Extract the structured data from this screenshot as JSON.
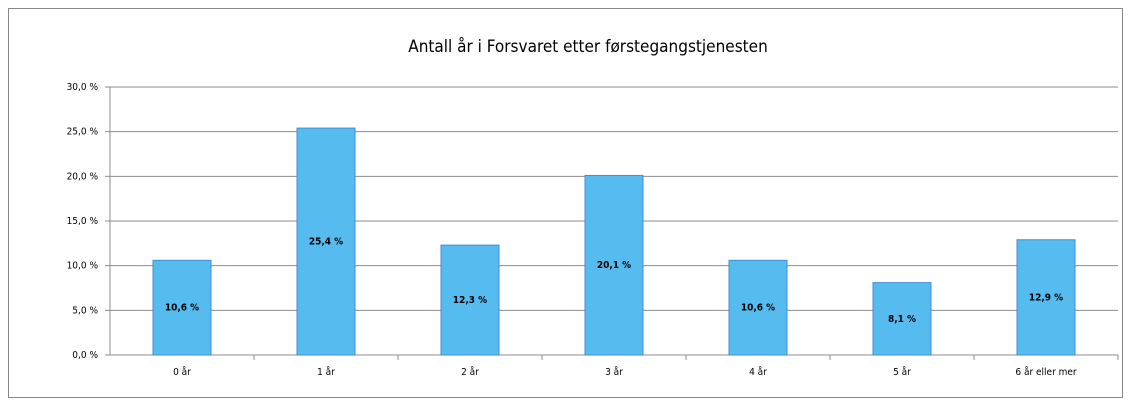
{
  "chart_data": {
    "type": "bar",
    "title": "Antall år i Forsvaret etter førstegangstjenesten",
    "categories": [
      "0 år",
      "1 år",
      "2 år",
      "3 år",
      "4 år",
      "5 år",
      "6 år eller mer"
    ],
    "values": [
      10.6,
      25.4,
      12.3,
      20.1,
      10.6,
      8.1,
      12.9
    ],
    "value_labels": [
      "10,6 %",
      "25,4 %",
      "12,3 %",
      "20,1 %",
      "10,6 %",
      "8,1 %",
      "12,9 %"
    ],
    "color": "#56bbee",
    "ylim": [
      0,
      30
    ],
    "yticks": [
      {
        "value": 0,
        "label": "0,0 %"
      },
      {
        "value": 5,
        "label": "5,0 %"
      },
      {
        "value": 10,
        "label": "10,0 %"
      },
      {
        "value": 15,
        "label": "15,0 %"
      },
      {
        "value": 20,
        "label": "20,0 %"
      },
      {
        "value": 25,
        "label": "25,0 %"
      },
      {
        "value": 30,
        "label": "30,0 %"
      }
    ],
    "grid": true
  }
}
